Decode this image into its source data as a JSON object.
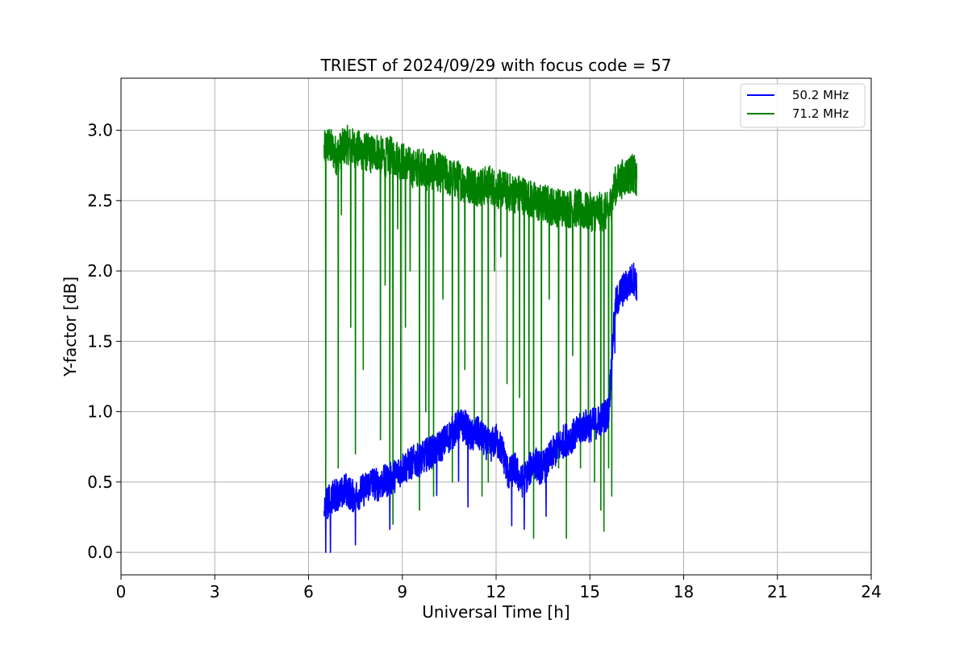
{
  "chart_data": {
    "type": "line",
    "title": "TRIEST of 2024/09/29 with focus code = 57",
    "xlabel": "Universal Time [h]",
    "ylabel": "Y-factor [dB]",
    "xlim": [
      0,
      24
    ],
    "ylim": [
      -0.16,
      3.37
    ],
    "xticks": [
      0,
      3,
      6,
      9,
      12,
      15,
      18,
      21,
      24
    ],
    "xtick_labels": [
      "0",
      "3",
      "6",
      "9",
      "12",
      "15",
      "18",
      "21",
      "24"
    ],
    "yticks": [
      0.0,
      0.5,
      1.0,
      1.5,
      2.0,
      2.5,
      3.0
    ],
    "ytick_labels": [
      "0.0",
      "0.5",
      "1.0",
      "1.5",
      "2.0",
      "2.5",
      "3.0"
    ],
    "grid": true,
    "legend": "top-right",
    "series": [
      {
        "name": "50.2 MHz",
        "color": "#0000ff",
        "x": [
          6.5,
          6.6,
          6.7,
          6.8,
          6.9,
          7.0,
          7.2,
          7.4,
          7.6,
          7.8,
          8.0,
          8.2,
          8.4,
          8.6,
          8.8,
          9.0,
          9.2,
          9.4,
          9.6,
          9.8,
          10.0,
          10.2,
          10.4,
          10.6,
          10.8,
          11.0,
          11.2,
          11.4,
          11.6,
          11.8,
          12.0,
          12.2,
          12.4,
          12.6,
          12.8,
          13.0,
          13.2,
          13.4,
          13.6,
          13.8,
          14.0,
          14.2,
          14.4,
          14.6,
          14.8,
          15.0,
          15.2,
          15.4,
          15.6,
          15.8,
          16.0,
          16.2,
          16.4,
          16.5
        ],
        "y": [
          0.3,
          0.35,
          0.38,
          0.4,
          0.42,
          0.4,
          0.45,
          0.4,
          0.42,
          0.45,
          0.5,
          0.48,
          0.5,
          0.52,
          0.55,
          0.6,
          0.62,
          0.65,
          0.66,
          0.7,
          0.72,
          0.75,
          0.8,
          0.85,
          0.9,
          0.9,
          0.82,
          0.85,
          0.8,
          0.75,
          0.8,
          0.72,
          0.55,
          0.6,
          0.5,
          0.55,
          0.65,
          0.6,
          0.62,
          0.7,
          0.75,
          0.8,
          0.82,
          0.85,
          0.9,
          0.9,
          0.92,
          0.95,
          1.0,
          1.75,
          1.85,
          1.9,
          1.95,
          1.9
        ],
        "noise": 0.12
      },
      {
        "name": "71.2 MHz",
        "color": "#008000",
        "x": [
          6.5,
          6.6,
          6.7,
          6.8,
          6.9,
          7.0,
          7.2,
          7.4,
          7.6,
          7.8,
          8.0,
          8.2,
          8.4,
          8.6,
          8.8,
          9.0,
          9.2,
          9.4,
          9.6,
          9.8,
          10.0,
          10.2,
          10.4,
          10.6,
          10.8,
          11.0,
          11.2,
          11.4,
          11.6,
          11.8,
          12.0,
          12.2,
          12.4,
          12.6,
          12.8,
          13.0,
          13.2,
          13.4,
          13.6,
          13.8,
          14.0,
          14.2,
          14.4,
          14.6,
          14.8,
          15.0,
          15.2,
          15.4,
          15.6,
          15.8,
          16.0,
          16.2,
          16.4,
          16.5
        ],
        "y": [
          2.85,
          2.9,
          2.88,
          2.85,
          2.82,
          2.85,
          2.9,
          2.88,
          2.86,
          2.85,
          2.83,
          2.85,
          2.8,
          2.82,
          2.8,
          2.78,
          2.75,
          2.72,
          2.75,
          2.7,
          2.72,
          2.7,
          2.68,
          2.65,
          2.65,
          2.62,
          2.62,
          2.6,
          2.6,
          2.62,
          2.58,
          2.58,
          2.56,
          2.55,
          2.55,
          2.52,
          2.5,
          2.48,
          2.48,
          2.46,
          2.45,
          2.45,
          2.44,
          2.45,
          2.42,
          2.42,
          2.42,
          2.42,
          2.42,
          2.6,
          2.65,
          2.68,
          2.7,
          2.62
        ],
        "noise": 0.14
      }
    ],
    "dropouts_71": [
      6.55,
      6.95,
      7.05,
      7.35,
      7.5,
      7.75,
      8.3,
      8.45,
      8.6,
      8.7,
      8.85,
      8.95,
      9.1,
      9.25,
      9.55,
      9.75,
      9.85,
      10.0,
      10.3,
      10.6,
      10.8,
      11.0,
      11.3,
      11.55,
      11.75,
      11.95,
      12.15,
      12.35,
      12.55,
      12.75,
      12.9,
      13.05,
      13.2,
      13.45,
      13.7,
      14.0,
      14.25,
      14.45,
      14.7,
      14.95,
      15.15,
      15.35,
      15.45,
      15.6,
      15.7
    ],
    "dropout_depth_71": [
      0.3,
      0.6,
      2.4,
      1.6,
      0.7,
      1.3,
      0.8,
      1.9,
      0.6,
      0.2,
      2.3,
      0.5,
      1.6,
      2.0,
      0.3,
      1.0,
      0.6,
      0.4,
      1.8,
      0.5,
      0.9,
      1.3,
      0.8,
      0.4,
      0.5,
      2.0,
      2.1,
      1.2,
      0.6,
      1.1,
      0.3,
      0.6,
      0.1,
      0.5,
      1.8,
      0.6,
      0.1,
      1.4,
      0.6,
      0.9,
      0.5,
      0.3,
      0.15,
      0.6,
      0.4
    ],
    "dropouts_50": [
      6.55,
      6.7,
      7.5,
      8.6,
      10.1,
      10.8,
      11.1,
      12.5,
      12.9,
      13.6,
      15.8
    ]
  }
}
